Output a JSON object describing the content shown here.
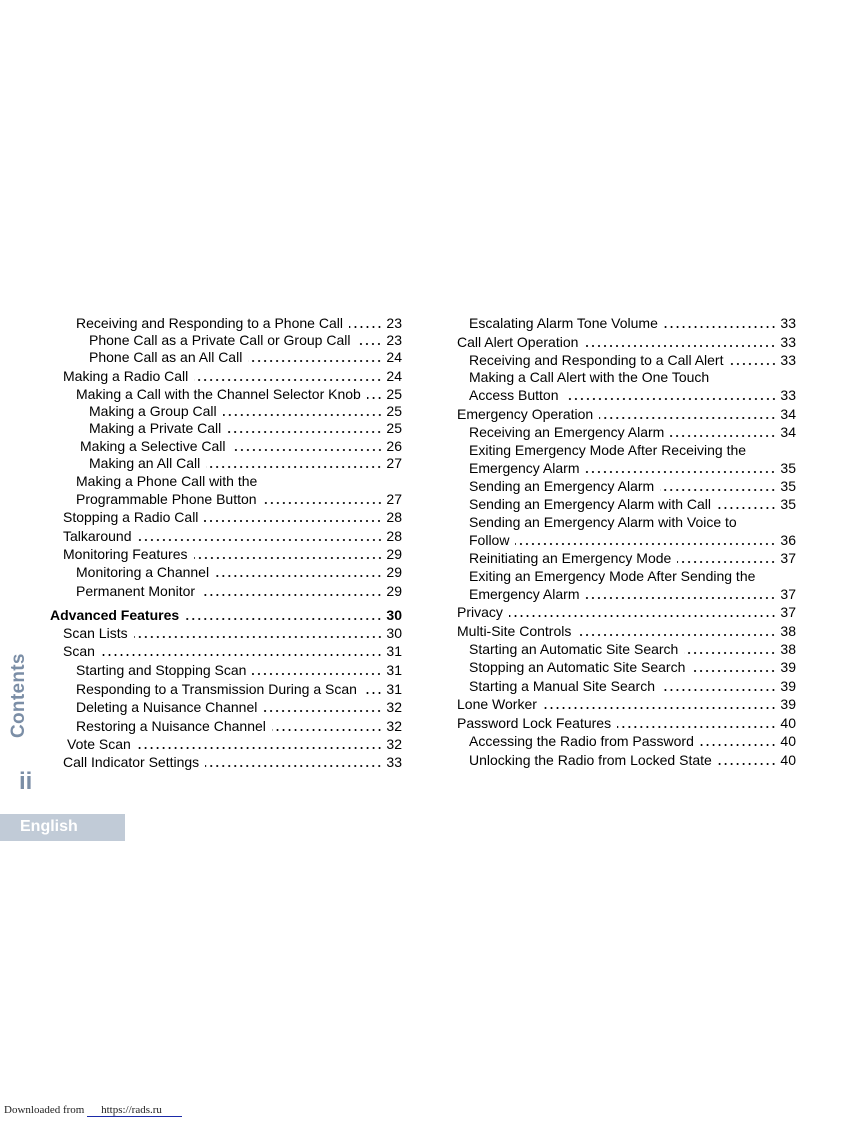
{
  "sidebar": {
    "section_label": "Contents",
    "page_number": "ii",
    "language": "English"
  },
  "footer": {
    "prefix": "Downloaded from",
    "link_text": "https://rads.ru"
  },
  "toc": {
    "left": [
      {
        "title": "Receiving and Responding to a Phone Call",
        "page": "23",
        "level": 1
      },
      {
        "title": "Phone Call as a Private Call or Group Call",
        "page": "23",
        "level": 2
      },
      {
        "title": "Phone Call as an All Call",
        "page": "24",
        "level": 2
      },
      {
        "title": "Making a Radio Call",
        "page": "24",
        "level": 0
      },
      {
        "title": "Making a Call with the Channel Selector Knob",
        "page": "25",
        "level": 1
      },
      {
        "title": "Making a Group Call",
        "page": "25",
        "level": 2
      },
      {
        "title": "Making a Private Call",
        "page": "25",
        "level": 2
      },
      {
        "title": "Making a Selective Call",
        "page": "26",
        "level": 1
      },
      {
        "title": "Making an All Call",
        "page": "27",
        "level": 2
      },
      {
        "title": "Making a Phone Call with the",
        "title2": "Programmable Phone Button",
        "page": "27",
        "level": 1
      },
      {
        "title": "Stopping a Radio Call",
        "page": "28",
        "level": 0
      },
      {
        "title": "Talkaround",
        "page": "28",
        "level": 0
      },
      {
        "title": "Monitoring Features",
        "page": "29",
        "level": 0
      },
      {
        "title": "Monitoring a Channel",
        "page": "29",
        "level": 1
      },
      {
        "title": "Permanent Monitor",
        "page": "29",
        "level": 1
      },
      {
        "title": "Advanced Features",
        "page": "30",
        "level": -1
      },
      {
        "title": "Scan Lists",
        "page": "30",
        "level": 0
      },
      {
        "title": "Scan",
        "page": "31",
        "level": 0
      },
      {
        "title": "Starting and Stopping Scan",
        "page": "31",
        "level": 1
      },
      {
        "title": "Responding to a Transmission During a Scan",
        "page": "31",
        "level": 1
      },
      {
        "title": "Deleting a Nuisance Channel",
        "page": "32",
        "level": 1
      },
      {
        "title": "Restoring a Nuisance Channel",
        "page": "32",
        "level": 1
      },
      {
        "title": "Vote Scan",
        "page": "32",
        "level": 0
      },
      {
        "title": "Call Indicator Settings",
        "page": "33",
        "level": 0
      }
    ],
    "right": [
      {
        "title": "Escalating Alarm Tone Volume",
        "page": "33",
        "level": 1
      },
      {
        "title": "Call Alert Operation",
        "page": "33",
        "level": 0
      },
      {
        "title": "Receiving and Responding to a Call Alert",
        "page": "33",
        "level": 1
      },
      {
        "title": "Making a Call Alert with the One Touch",
        "title2": "Access Button",
        "page": "33",
        "level": 1
      },
      {
        "title": "Emergency Operation",
        "page": "34",
        "level": 0
      },
      {
        "title": "Receiving an Emergency Alarm",
        "page": "34",
        "level": 1
      },
      {
        "title": "Exiting Emergency Mode After Receiving the",
        "title2": "Emergency Alarm",
        "page": "35",
        "level": 1
      },
      {
        "title": "Sending an Emergency Alarm",
        "page": "35",
        "level": 1
      },
      {
        "title": "Sending an Emergency Alarm with Call",
        "page": "35",
        "level": 1
      },
      {
        "title": "Sending an Emergency Alarm with Voice to",
        "title2": "Follow",
        "page": "36",
        "level": 1
      },
      {
        "title": "Reinitiating an Emergency Mode",
        "page": "37",
        "level": 1
      },
      {
        "title": "Exiting an Emergency Mode After Sending the",
        "title2": "Emergency Alarm",
        "page": "37",
        "level": 1
      },
      {
        "title": "Privacy",
        "page": "37",
        "level": 0
      },
      {
        "title": "Multi-Site Controls",
        "page": "38",
        "level": 0
      },
      {
        "title": "Starting an Automatic Site Search",
        "page": "38",
        "level": 1
      },
      {
        "title": "Stopping an Automatic Site Search",
        "page": "39",
        "level": 1
      },
      {
        "title": "Starting a Manual Site Search",
        "page": "39",
        "level": 1
      },
      {
        "title": "Lone Worker",
        "page": "39",
        "level": 0
      },
      {
        "title": "Password Lock Features",
        "page": "40",
        "level": 0
      },
      {
        "title": "Accessing the Radio from Password",
        "page": "40",
        "level": 1
      },
      {
        "title": "Unlocking the Radio from Locked State",
        "page": "40",
        "level": 1
      }
    ]
  }
}
